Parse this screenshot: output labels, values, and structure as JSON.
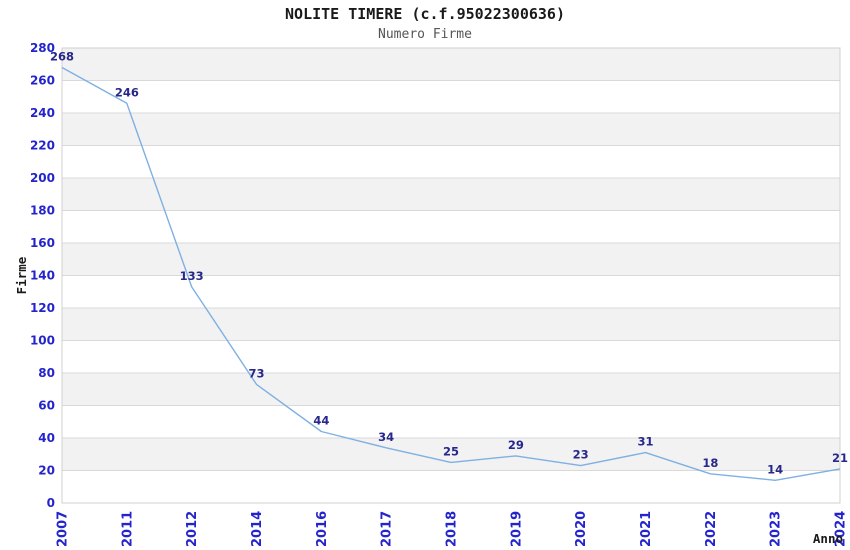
{
  "header": {
    "title": "NOLITE TIMERE (c.f.95022300636)",
    "subtitle": "Numero Firme"
  },
  "chart_data": {
    "type": "line",
    "title": "NOLITE TIMERE (c.f.95022300636)",
    "subtitle": "Numero Firme",
    "xlabel": "Anno",
    "ylabel": "Firme",
    "categories": [
      "2007",
      "2011",
      "2012",
      "2014",
      "2016",
      "2017",
      "2018",
      "2019",
      "2020",
      "2021",
      "2022",
      "2023",
      "2024"
    ],
    "series": [
      {
        "name": "Numero Firme",
        "values": [
          268,
          246,
          133,
          73,
          44,
          34,
          25,
          29,
          23,
          31,
          18,
          14,
          21
        ]
      }
    ],
    "ylim": [
      0,
      280
    ],
    "ytick_step": 20,
    "grid": "horizontal",
    "bands": "alternating-20",
    "legend": "none",
    "data_labels": true,
    "colors": {
      "line": "#7fb0e3",
      "data_label": "#28288c",
      "tick_label": "#2424cc",
      "band": "#f2f2f2",
      "gridline": "#d9d9d9",
      "plot_border": "#d0d0d0",
      "axis_title": "#1a1a1a"
    }
  }
}
